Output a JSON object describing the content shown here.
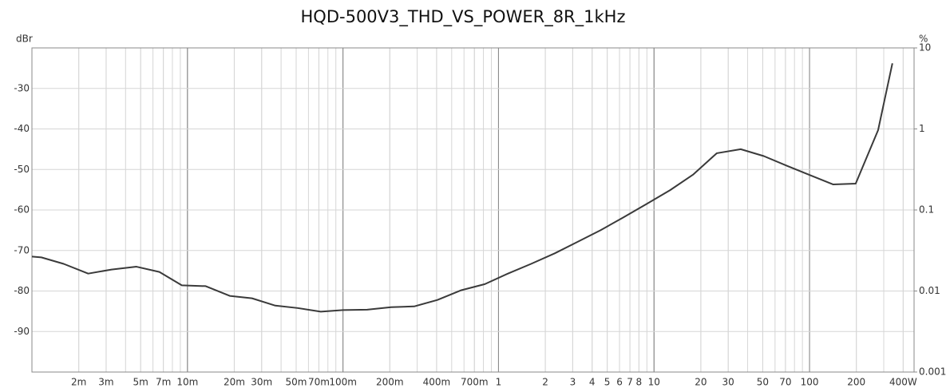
{
  "chart_data": {
    "type": "line",
    "title": "HQD-500V3_THD_VS_POWER_8R_1kHz",
    "y_label": "dBr",
    "y2_label": "%",
    "x_scale": "log",
    "y2_scale": "log",
    "grid": true,
    "minor_grid": true,
    "xlim": [
      0.001,
      470
    ],
    "ylim": [
      -100,
      -20
    ],
    "y2lim": [
      0.001,
      10
    ],
    "xticks": [
      {
        "value": 0.002,
        "label": "2m"
      },
      {
        "value": 0.003,
        "label": "3m"
      },
      {
        "value": 0.005,
        "label": "5m"
      },
      {
        "value": 0.007,
        "label": "7m"
      },
      {
        "value": 0.01,
        "label": "10m"
      },
      {
        "value": 0.02,
        "label": "20m"
      },
      {
        "value": 0.03,
        "label": "30m"
      },
      {
        "value": 0.05,
        "label": "50m"
      },
      {
        "value": 0.07,
        "label": "70m"
      },
      {
        "value": 0.1,
        "label": "100m"
      },
      {
        "value": 0.2,
        "label": "200m"
      },
      {
        "value": 0.4,
        "label": "400m"
      },
      {
        "value": 0.7,
        "label": "700m"
      },
      1,
      2,
      3,
      4,
      5,
      6,
      7,
      8,
      10,
      20,
      30,
      50,
      70,
      100,
      200,
      {
        "value": 400,
        "label": "400W"
      }
    ],
    "yticks": [
      -90,
      -80,
      -70,
      -60,
      -50,
      -40,
      -30
    ],
    "y2ticks": [
      0.001,
      0.01,
      0.1,
      1,
      10
    ],
    "series": [
      {
        "name": "THD",
        "color": "#3a3a3a",
        "x": [
          0.001,
          0.00115,
          0.0016,
          0.0023,
          0.00325,
          0.0047,
          0.0066,
          0.0092,
          0.0131,
          0.0187,
          0.026,
          0.0367,
          0.051,
          0.072,
          0.1,
          0.143,
          0.204,
          0.287,
          0.405,
          0.577,
          0.817,
          1.15,
          1.62,
          2.3,
          3.21,
          4.53,
          6.31,
          8.98,
          12.7,
          17.8,
          25.3,
          36.1,
          50.8,
          71.6,
          102,
          142,
          198,
          276,
          341
        ],
        "values": [
          -71.5,
          -71.7,
          -73.3,
          -75.7,
          -74.7,
          -74.0,
          -75.3,
          -78.6,
          -78.8,
          -81.2,
          -81.8,
          -83.6,
          -84.2,
          -85.1,
          -84.7,
          -84.6,
          -84.0,
          -83.8,
          -82.2,
          -79.8,
          -78.3,
          -75.7,
          -73.3,
          -70.7,
          -67.9,
          -65.0,
          -61.9,
          -58.5,
          -55.1,
          -51.3,
          -46.0,
          -45.0,
          -46.7,
          -49.1,
          -51.5,
          -53.7,
          -53.5,
          -40.3,
          -23.8
        ]
      }
    ]
  }
}
